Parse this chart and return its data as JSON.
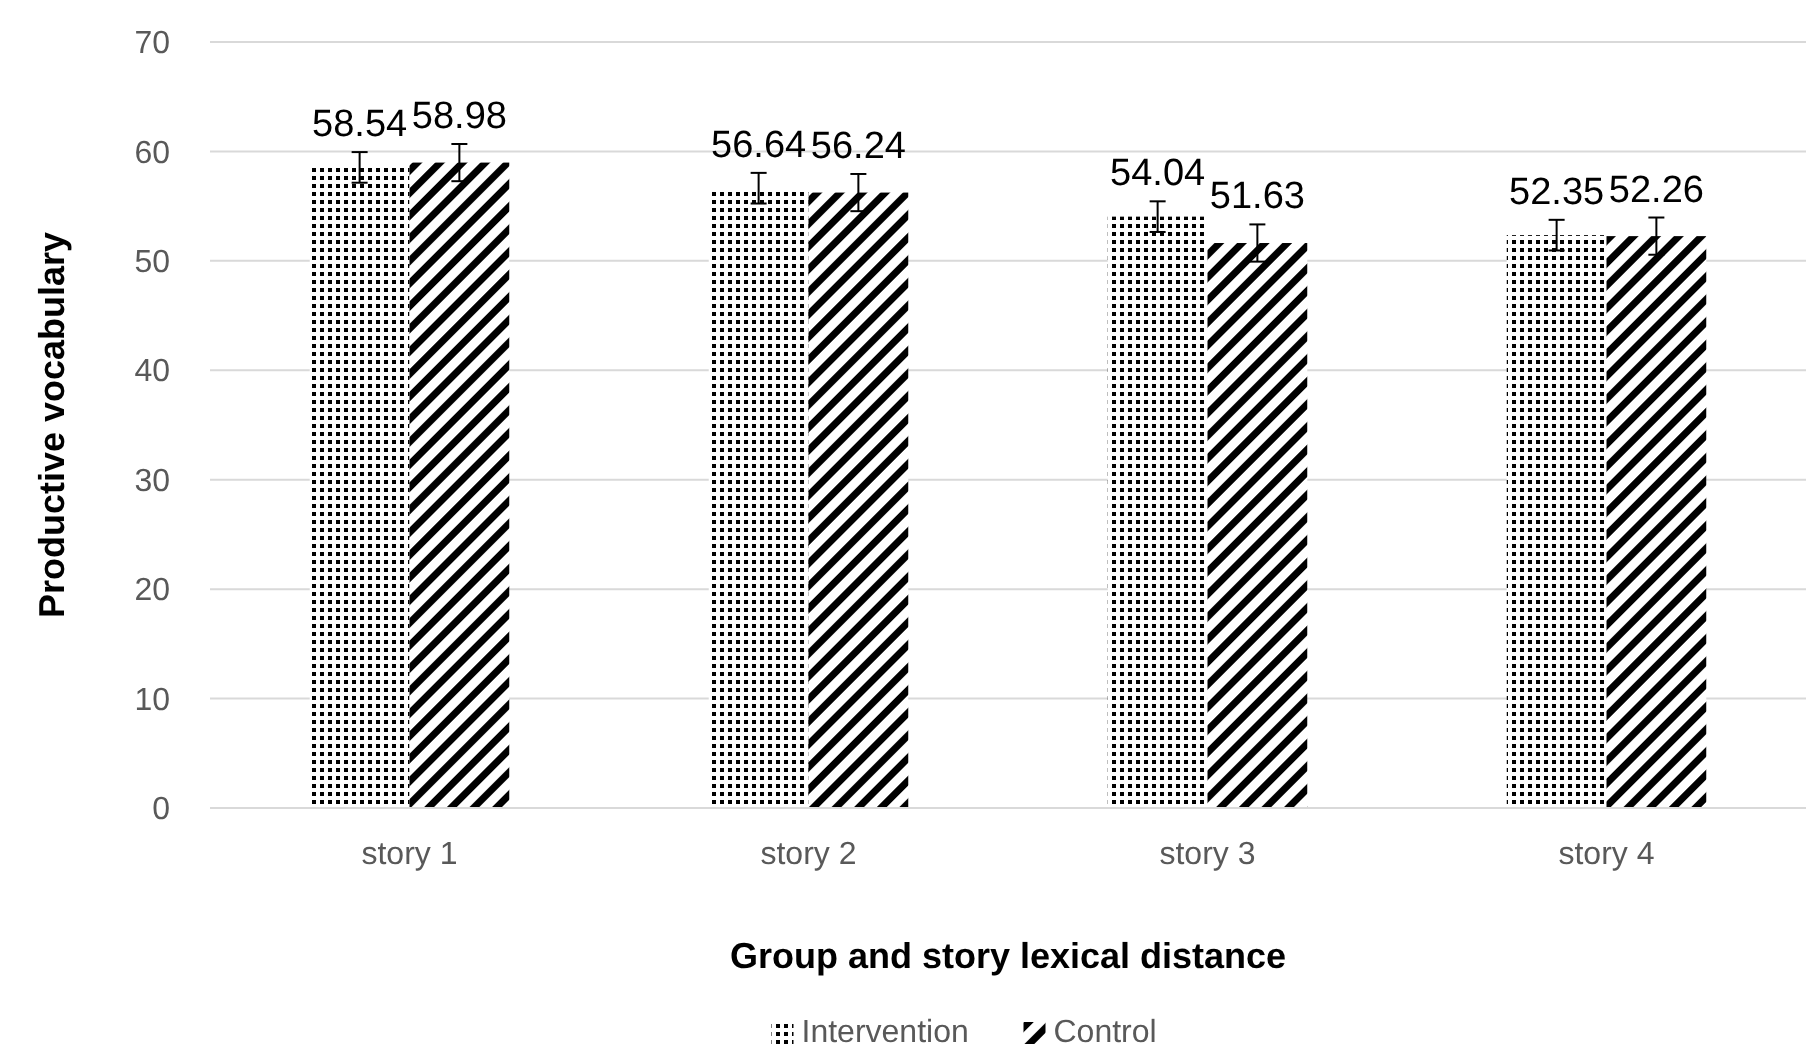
{
  "chart_data": {
    "type": "bar",
    "xlabel": "Group and story lexical distance",
    "ylabel": "Productive vocabulary",
    "categories": [
      "story 1",
      "story 2",
      "story 3",
      "story 4"
    ],
    "series": [
      {
        "name": "Intervention",
        "color": "#000000",
        "values": [
          58.54,
          56.64,
          54.04,
          52.35
        ],
        "errors": [
          1.4,
          1.4,
          1.4,
          1.4
        ]
      },
      {
        "name": "Control",
        "color": "#000000",
        "values": [
          58.98,
          56.24,
          51.63,
          52.26
        ],
        "errors": [
          1.7,
          1.7,
          1.7,
          1.7
        ]
      }
    ],
    "ylim": [
      0,
      70
    ],
    "yticks": [
      0,
      10,
      20,
      30,
      40,
      50,
      60,
      70
    ],
    "grid": "y",
    "legend": "bottom",
    "data_labels": true
  }
}
